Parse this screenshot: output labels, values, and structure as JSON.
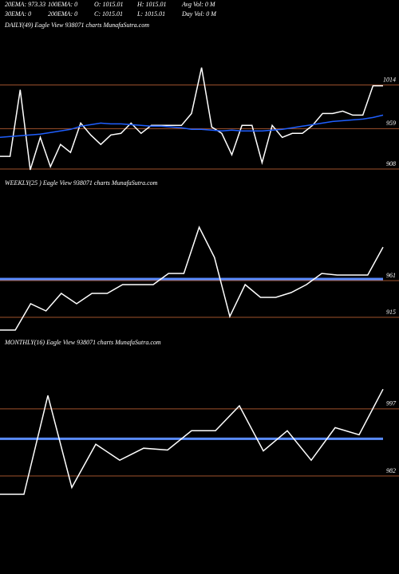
{
  "header": {
    "line1": [
      "20EMA: 973.33",
      "100EMA: 0",
      "O: 1015.01",
      "H: 1015.01",
      "Avg Vol: 0  M"
    ],
    "line2": [
      "30EMA: 0",
      "200EMA: 0",
      "C: 1015.01",
      "L: 1015.01",
      "Day Vol: 0  M"
    ]
  },
  "chart_data": [
    {
      "type": "line",
      "title": "DAILY(49) Eagle  View  938071 charts MunafaSutra.com",
      "ylim": [
        900,
        1081
      ],
      "yticks": [
        908,
        959,
        1014
      ],
      "grid": true,
      "grid_color": "#a0522d",
      "series": [
        {
          "color": "#ffffff",
          "width": 1.5,
          "values": [
            924,
            924,
            1008,
            907,
            948,
            911,
            939,
            929,
            966,
            951,
            939,
            951,
            953,
            966,
            953,
            963,
            963,
            963,
            963,
            978,
            1036,
            961,
            953,
            926,
            963,
            963,
            916,
            963,
            948,
            953,
            953,
            963,
            978,
            978,
            981,
            976,
            976,
            1013,
            1013
          ]
        },
        {
          "color": "#1f5fff",
          "width": 1.5,
          "values": [
            948,
            949,
            950,
            951,
            952,
            954,
            956,
            958,
            962,
            964,
            966,
            965,
            965,
            964,
            963,
            962,
            962,
            961,
            960,
            958,
            958,
            957,
            956,
            957,
            956,
            956,
            956,
            957,
            958,
            960,
            962,
            964,
            966,
            968,
            969,
            970,
            971,
            973,
            976
          ]
        }
      ]
    },
    {
      "type": "line",
      "title": "WEEKLY(25    ) Eagle  View  938071 charts MunafaSutra.com",
      "ylim": [
        898,
        1073
      ],
      "yticks": [
        915,
        961
      ],
      "grid": true,
      "grid_color": "#a0522d",
      "series": [
        {
          "color": "#5a8cff",
          "width": 3,
          "values": [
            963,
            963,
            963,
            963,
            963,
            963,
            963,
            963,
            963,
            963,
            963,
            963,
            963,
            963,
            963,
            963,
            963,
            963,
            963,
            963,
            963,
            963,
            963,
            963,
            963,
            963
          ]
        },
        {
          "color": "#ffffff",
          "width": 1.5,
          "values": [
            899,
            899,
            932,
            923,
            945,
            932,
            945,
            945,
            956,
            956,
            956,
            970,
            970,
            1028,
            990,
            916,
            956,
            940,
            940,
            946,
            956,
            970,
            968,
            968,
            968,
            1003
          ]
        }
      ]
    },
    {
      "type": "line",
      "title": "MONTHLY(16) Eagle  View  938071 charts MunafaSutra.com",
      "ylim": [
        977,
        1010
      ],
      "yticks": [
        982,
        997
      ],
      "grid": true,
      "grid_color": "#a0522d",
      "series": [
        {
          "color": "#5a8cff",
          "width": 3,
          "values": [
            990.3,
            990.3,
            990.3,
            990.3,
            990.3,
            990.3,
            990.3,
            990.3,
            990.3,
            990.3,
            990.3,
            990.3,
            990.3,
            990.3,
            990.3,
            990.3,
            990.3
          ]
        },
        {
          "color": "#ffffff",
          "width": 1.5,
          "values": [
            977.9,
            977.9,
            1000.0,
            979.4,
            989.1,
            985.5,
            988.2,
            987.8,
            992.1,
            992.1,
            997.7,
            987.6,
            992.1,
            985.5,
            992.8,
            991.2,
            1001.4
          ]
        }
      ]
    }
  ]
}
